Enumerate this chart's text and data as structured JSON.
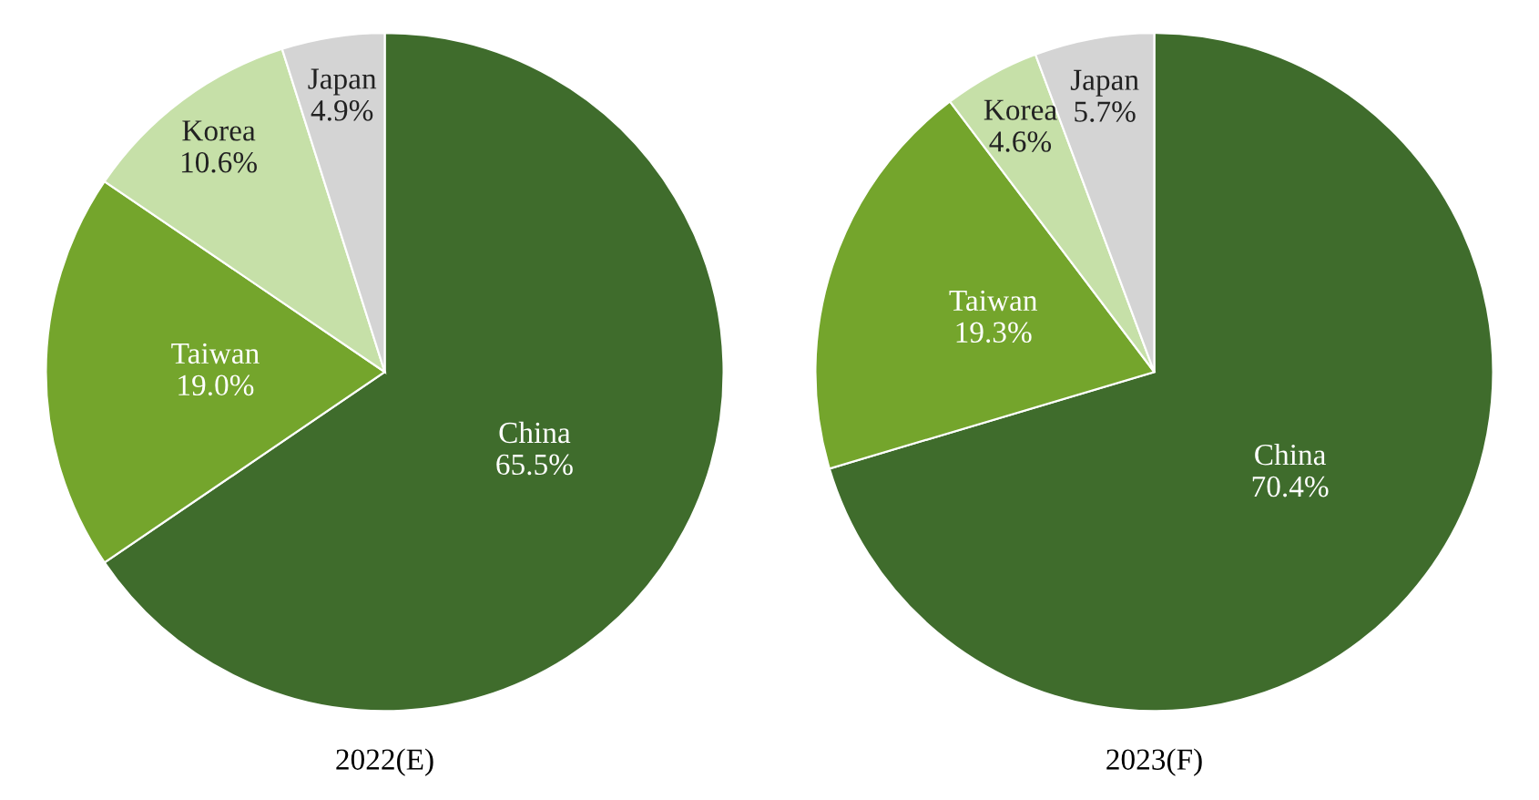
{
  "chart_data": [
    {
      "type": "pie",
      "title": "2022(E)",
      "categories": [
        "China",
        "Taiwan",
        "Korea",
        "Japan"
      ],
      "values": [
        65.5,
        19.0,
        10.6,
        4.9
      ],
      "value_labels": [
        "65.5%",
        "19.0%",
        "10.6%",
        "4.9%"
      ],
      "colors": [
        "#3f6c2c",
        "#74a52c",
        "#c6e0a8",
        "#d4d4d4"
      ]
    },
    {
      "type": "pie",
      "title": "2023(F)",
      "categories": [
        "China",
        "Taiwan",
        "Korea",
        "Japan"
      ],
      "values": [
        70.4,
        19.3,
        4.6,
        5.7
      ],
      "value_labels": [
        "70.4%",
        "19.3%",
        "4.6%",
        "5.7%"
      ],
      "colors": [
        "#3f6c2c",
        "#74a52c",
        "#c6e0a8",
        "#d4d4d4"
      ]
    }
  ]
}
